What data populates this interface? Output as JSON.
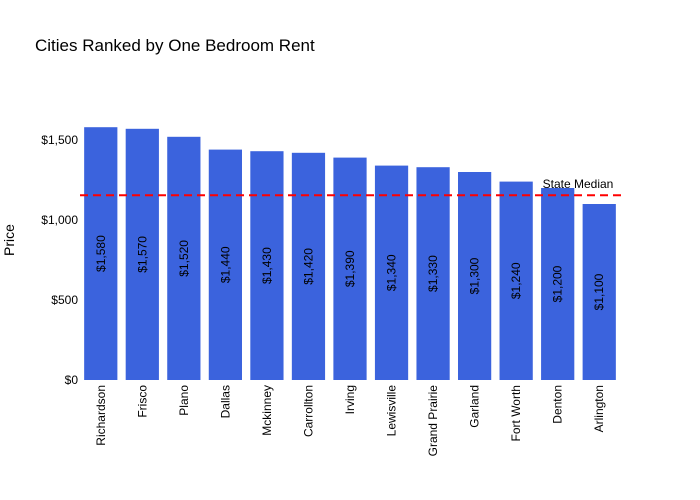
{
  "chart_data": {
    "type": "bar",
    "title": "Cities Ranked by One Bedroom Rent",
    "xlabel": "",
    "ylabel": "Price",
    "categories": [
      "Richardson",
      "Frisco",
      "Plano",
      "Dallas",
      "Mckinney",
      "Carrollton",
      "Irving",
      "Lewisville",
      "Grand Prairie",
      "Garland",
      "Fort Worth",
      "Denton",
      "Arlington"
    ],
    "values": [
      1580,
      1570,
      1520,
      1440,
      1430,
      1420,
      1390,
      1340,
      1330,
      1300,
      1240,
      1200,
      1100
    ],
    "value_labels": [
      "$1,580",
      "$1,570",
      "$1,520",
      "$1,440",
      "$1,430",
      "$1,420",
      "$1,390",
      "$1,340",
      "$1,330",
      "$1,300",
      "$1,240",
      "$1,200",
      "$1,100"
    ],
    "ylim": [
      0,
      1750
    ],
    "yticks": [
      0,
      500,
      1000,
      1500
    ],
    "ytick_labels": [
      "$0",
      "$500",
      "$1,000",
      "$1,500"
    ],
    "bar_color": "#3b63dd",
    "reference_line": {
      "label": "State Median",
      "value": 1155,
      "color": "#ff0000",
      "style": "dashed"
    },
    "grid": false,
    "legend": "none"
  }
}
